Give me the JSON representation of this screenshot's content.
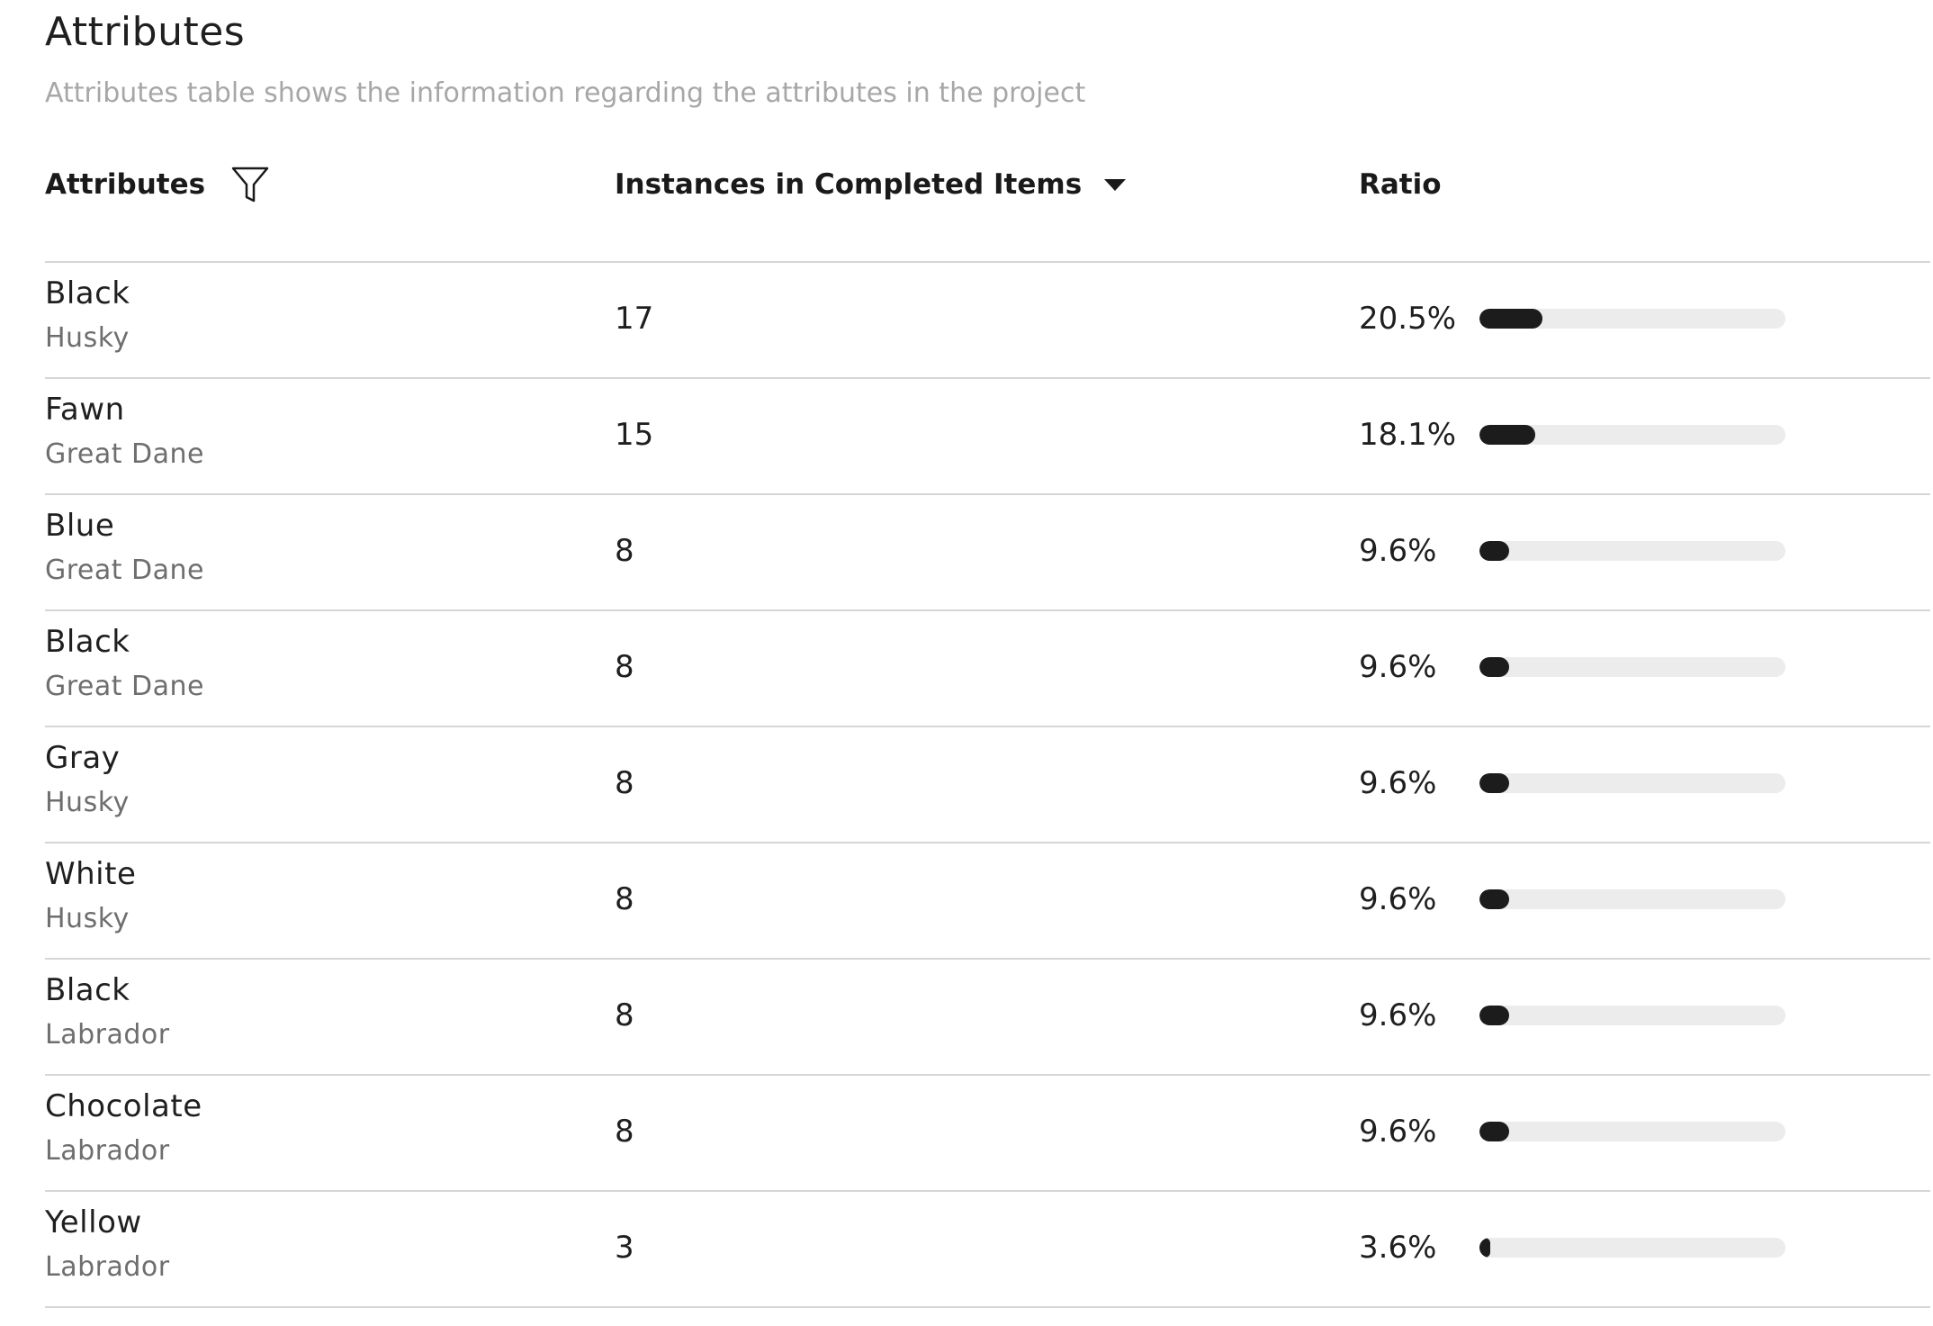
{
  "header": {
    "title": "Attributes",
    "subtitle": "Attributes table shows the information regarding the attributes in the project"
  },
  "table": {
    "columns": {
      "attributes": "Attributes",
      "count": "Instances in Completed Items",
      "ratio": "Ratio"
    },
    "filter_icon": "filter-icon",
    "sort_icon": "caret-down-icon",
    "sort_column": "count",
    "sort_direction": "descending",
    "bar_fill_color": "#1c1c1c",
    "bar_track_color": "#ececec",
    "rows": [
      {
        "attribute": "Black",
        "group": "Husky",
        "count": "17",
        "ratio_label": "20.5%",
        "ratio": 20.5
      },
      {
        "attribute": "Fawn",
        "group": "Great Dane",
        "count": "15",
        "ratio_label": "18.1%",
        "ratio": 18.1
      },
      {
        "attribute": "Blue",
        "group": "Great Dane",
        "count": "8",
        "ratio_label": "9.6%",
        "ratio": 9.6
      },
      {
        "attribute": "Black",
        "group": "Great Dane",
        "count": "8",
        "ratio_label": "9.6%",
        "ratio": 9.6
      },
      {
        "attribute": "Gray",
        "group": "Husky",
        "count": "8",
        "ratio_label": "9.6%",
        "ratio": 9.6
      },
      {
        "attribute": "White",
        "group": "Husky",
        "count": "8",
        "ratio_label": "9.6%",
        "ratio": 9.6
      },
      {
        "attribute": "Black",
        "group": "Labrador",
        "count": "8",
        "ratio_label": "9.6%",
        "ratio": 9.6
      },
      {
        "attribute": "Chocolate",
        "group": "Labrador",
        "count": "8",
        "ratio_label": "9.6%",
        "ratio": 9.6
      },
      {
        "attribute": "Yellow",
        "group": "Labrador",
        "count": "3",
        "ratio_label": "3.6%",
        "ratio": 3.6
      }
    ]
  }
}
